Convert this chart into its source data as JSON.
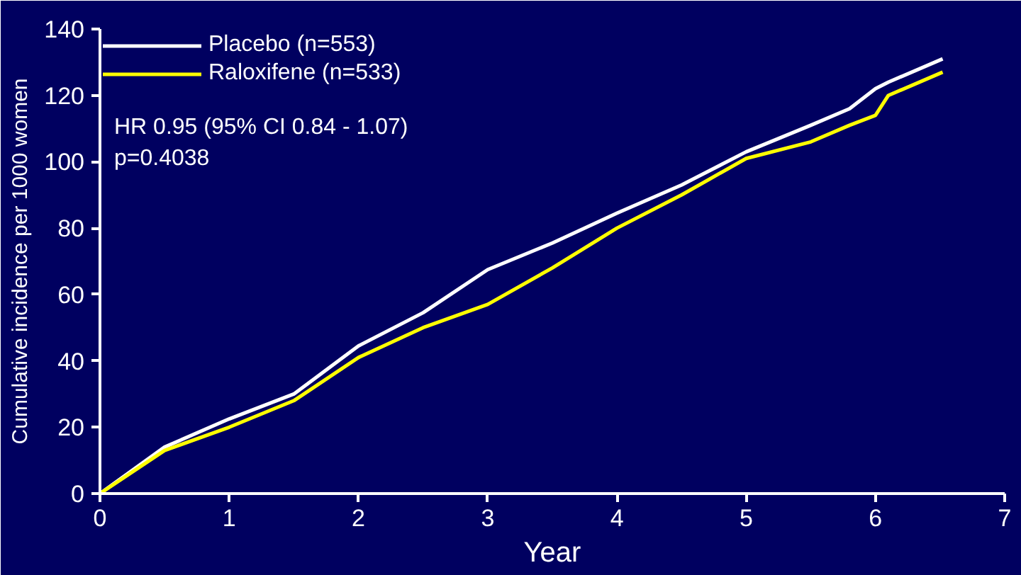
{
  "chart_data": {
    "type": "line",
    "xlabel": "Year",
    "ylabel": "Cumulative incidence per 1000 women",
    "x": [
      0,
      0.5,
      1,
      1.5,
      2,
      2.5,
      3,
      3.5,
      4,
      4.5,
      5,
      5.5,
      5.8,
      6,
      6.1,
      6.52
    ],
    "series": [
      {
        "name": "Placebo (n=553)",
        "color": "#ffffff",
        "values": [
          0,
          14,
          22.5,
          30,
          44.5,
          54.5,
          67.5,
          75.5,
          84.5,
          93,
          103,
          111,
          116,
          122,
          124,
          131
        ]
      },
      {
        "name": "Raloxifene (n=533)",
        "color": "#ffff00",
        "values": [
          0,
          13,
          20,
          28,
          41,
          50,
          57,
          68,
          80,
          90,
          101,
          106,
          111,
          114,
          120,
          127
        ]
      }
    ],
    "annotations": [
      "HR 0.95 (95% CI 0.84 - 1.07)",
      "p=0.4038"
    ],
    "xlim": [
      0,
      7
    ],
    "xticks": [
      0,
      1,
      2,
      3,
      4,
      5,
      6,
      7
    ],
    "ylim": [
      0,
      140
    ],
    "yticks": [
      0,
      20,
      40,
      60,
      80,
      100,
      120,
      140
    ],
    "grid": false,
    "legend": "top left",
    "marker": "none",
    "line_style": "solid"
  }
}
